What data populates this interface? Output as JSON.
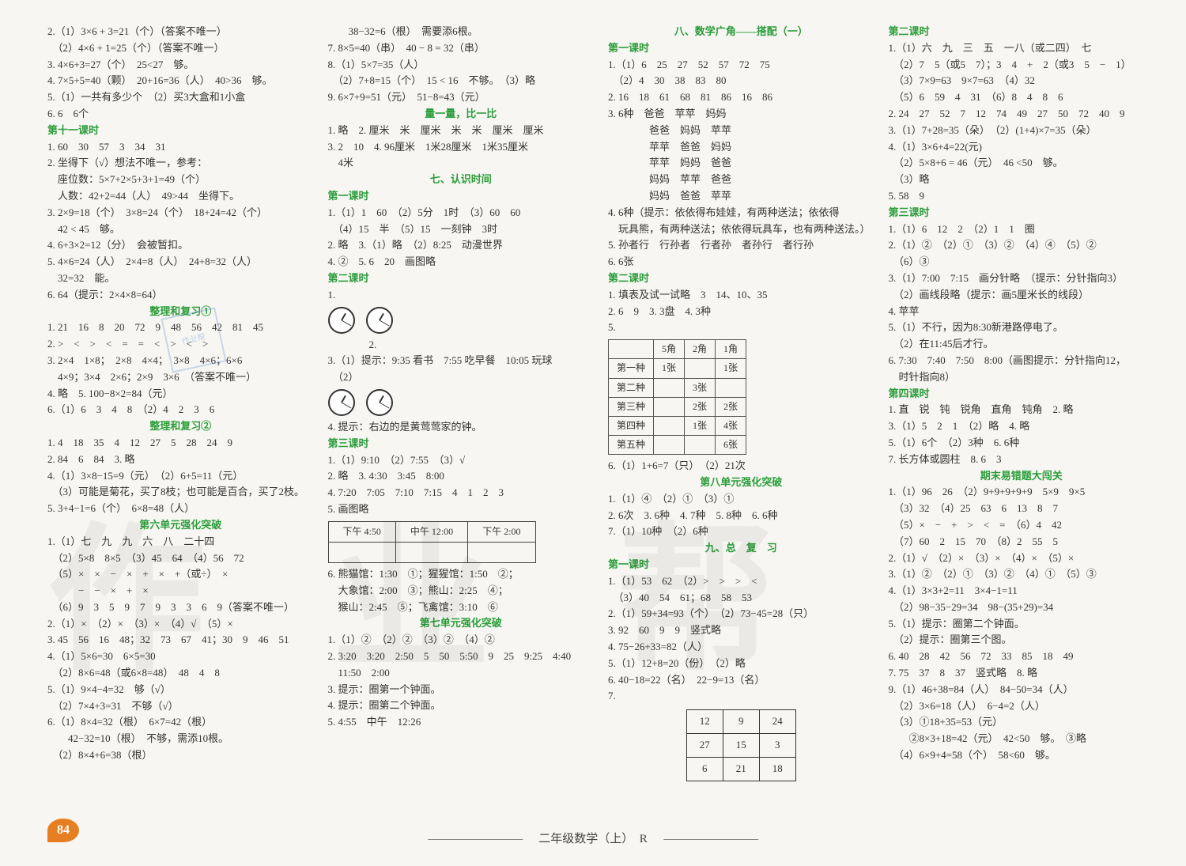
{
  "page_number": "84",
  "footer": "二年级数学（上）　R",
  "watermark": [
    "作",
    "业",
    "帮"
  ],
  "stamp_text": "作业帮",
  "col1": [
    {
      "t": "2.（1）3×6 + 3=21（个）（答案不唯一）"
    },
    {
      "t": "　（2）4×6 + 1=25（个）（答案不唯一）"
    },
    {
      "t": "3. 4×6+3=27（个）　25<27　够。"
    },
    {
      "t": "4. 7×5+5=40（颗）　20+16=36（人）　40>36　够。"
    },
    {
      "t": "5.（1）一共有多少个　（2）买3大盒和1小盒"
    },
    {
      "t": "6. 6　6个"
    },
    {
      "t": "第十一课时",
      "cls": "green"
    },
    {
      "t": "1. 60　30　57　3　34　31"
    },
    {
      "t": "2. 坐得下（√）想法不唯一，参考："
    },
    {
      "t": "　座位数：5×7+2×5+3+1=49（个）"
    },
    {
      "t": "　人数：42+2=44（人）　49>44　坐得下。"
    },
    {
      "t": "3. 2×9=18（个）　3×8=24（个）　18+24=42（个）"
    },
    {
      "t": "　42 < 45　够。"
    },
    {
      "t": "4. 6+3×2=12（分）　会被暂扣。"
    },
    {
      "t": "5. 4×6=24（人）　2×4=8（人）　24+8=32（人）"
    },
    {
      "t": "　32=32　能。"
    },
    {
      "t": "6. 64（提示：2×4×8=64）"
    },
    {
      "t": "整理和复习①",
      "cls": "green center"
    },
    {
      "t": "1. 21　16　8　20　72　9　48　56　42　81　45"
    },
    {
      "t": "2. >　<　>　<　=　=　<　>　<　>"
    },
    {
      "t": "3. 2×4　1×8；　2×8　4×4；　3×8　4×6；6×6"
    },
    {
      "t": "　4×9；3×4　2×6；2×9　3×6　（答案不唯一）"
    },
    {
      "t": "4. 略　5. 100−8×2=84（元）"
    },
    {
      "t": "6.（1）6　3　4　8　（2）4　2　3　6"
    },
    {
      "t": "整理和复习②",
      "cls": "green center"
    },
    {
      "t": "1. 4　18　35　4　12　27　5　28　24　9"
    },
    {
      "t": "2. 84　6　84　3. 略"
    },
    {
      "t": "4.（1）3×8−15=9（元）　（2）6+5=11（元）"
    },
    {
      "t": "　（3）可能是菊花，买了8枝；也可能是百合，买了2枝。"
    },
    {
      "t": "5. 3+4−1=6（个）　6×8=48（人）"
    },
    {
      "t": "第六单元强化突破",
      "cls": "green center"
    },
    {
      "t": "1.（1）七　九　九　六　八　二十四"
    },
    {
      "t": "　（2）5×8　8×5　（3）45　64　（4）56　72"
    },
    {
      "t": "　（5）×　×　−　×　+　×　+（或÷）　×"
    },
    {
      "t": "　　　−　−　×　+　×"
    },
    {
      "t": "　（6）9　3　5　9　7　9　3　3　6　9（答案不唯一）"
    },
    {
      "t": "2.（1）×　（2）×　（3）×　（4）√　（5）×"
    },
    {
      "t": "3. 45　56　16　48；32　73　67　41；30　9　46　51"
    },
    {
      "t": "4.（1）5×6=30　6×5=30"
    },
    {
      "t": "　（2）8×6=48（或6×8=48）　48　4　8"
    },
    {
      "t": "5.（1）9×4−4=32　够（√）"
    },
    {
      "t": "　（2）7×4+3=31　不够（√）"
    },
    {
      "t": "6.（1）8×4=32（根）　6×7=42（根）"
    },
    {
      "t": "　　42−32=10（根）　不够，需添10根。"
    },
    {
      "t": "　（2）8×4+6=38（根）"
    }
  ],
  "col2": [
    {
      "t": "　　38−32=6（根）　需要添6根。"
    },
    {
      "t": "7. 8×5=40（串）　40 − 8 = 32（串）"
    },
    {
      "t": "8.（1）5×7=35（人）"
    },
    {
      "t": "　（2）7+8=15（个）　15 < 16　不够。　（3）略"
    },
    {
      "t": "9. 6×7+9=51（元）　51−8=43（元）"
    },
    {
      "t": "量一量，比一比",
      "cls": "green center"
    },
    {
      "t": "1. 略　2. 厘米　米　厘米　米　米　厘米　厘米"
    },
    {
      "t": "3. 2　10　4. 96厘米　1米28厘米　1米35厘米"
    },
    {
      "t": "　4米"
    },
    {
      "t": "七、认识时间",
      "cls": "green center"
    },
    {
      "t": "第一课时",
      "cls": "green"
    },
    {
      "t": "1.（1）1　60　（2）5分　1时　（3）60　60"
    },
    {
      "t": "　（4）15　半　（5）15　一刻钟　3时"
    },
    {
      "t": "2. 略　3.（1）略　（2）8:25　动漫世界"
    },
    {
      "t": "4. ②　5. 6　20　画图略"
    },
    {
      "t": "第二课时",
      "cls": "green"
    },
    {
      "t": "1.",
      "clocks": 2
    },
    {
      "t": "　　　　2."
    },
    {
      "t": "3.（1）提示：9:35 看书　7:55 吃早餐　10:05 玩球"
    },
    {
      "t": "　（2）",
      "clocks": 2
    },
    {
      "t": "4. 提示：右边的是黄莺莺家的钟。"
    },
    {
      "t": "第三课时",
      "cls": "green"
    },
    {
      "t": "1.（1）9:10　（2）7:55　（3）√"
    },
    {
      "t": "2. 略　3. 4:30　3:45　8:00"
    },
    {
      "t": "4. 7:20　7:05　7:10　7:15　4　1　2　3"
    },
    {
      "t": "5. 画图略"
    },
    {
      "table_time": true
    },
    {
      "t": "6. 熊猫馆：1:30　①；猩猩馆：1:50　②；"
    },
    {
      "t": "　大象馆：2:00　③；熊山：2:25　④；"
    },
    {
      "t": "　猴山：2:45　⑤；飞禽馆：3:10　⑥"
    },
    {
      "t": "第七单元强化突破",
      "cls": "green center"
    },
    {
      "t": "1.（1）②　（2）②　（3）②　（4）②"
    },
    {
      "t": "2. 3:20　3:20　2:50　5　50　5:50　9　25　9:25　4:40"
    },
    {
      "t": "　11:50　2:00"
    },
    {
      "t": "3. 提示：圈第一个钟面。"
    },
    {
      "t": "4. 提示：圈第二个钟面。"
    },
    {
      "t": "5. 4:55　中午　12:26"
    }
  ],
  "col2_time_table": {
    "row1": [
      "下午 4:50",
      "中午 12:00",
      "下午 2:00"
    ],
    "row2": [
      "",
      "",
      ""
    ]
  },
  "col3": [
    {
      "t": "八、数学广角——搭配（一）",
      "cls": "green center"
    },
    {
      "t": "第一课时",
      "cls": "green"
    },
    {
      "t": "1.（1）6　25　27　52　57　72　75"
    },
    {
      "t": "　（2）4　30　38　83　80"
    },
    {
      "t": "2. 16　18　61　68　81　86　16　86"
    },
    {
      "t": "3. 6种　爸爸　苹苹　妈妈"
    },
    {
      "t": "　　　　爸爸　妈妈　苹苹"
    },
    {
      "t": "　　　　苹苹　爸爸　妈妈"
    },
    {
      "t": "　　　　苹苹　妈妈　爸爸"
    },
    {
      "t": "　　　　妈妈　苹苹　爸爸"
    },
    {
      "t": "　　　　妈妈　爸爸　苹苹"
    },
    {
      "t": "4. 6种（提示：依依得布娃娃，有两种送法；依依得"
    },
    {
      "t": "　玩具熊，有两种送法；依依得玩具车，也有两种送法。）"
    },
    {
      "t": "5. 孙者行　行孙者　行者孙　者孙行　者行孙"
    },
    {
      "t": "6. 6张"
    },
    {
      "t": "第二课时",
      "cls": "green"
    },
    {
      "t": "1. 填表及试一试略　3　14、10、35"
    },
    {
      "t": "2. 6　9　3. 3盘　4. 3种"
    },
    {
      "t": "5.",
      "table1": true
    },
    {
      "t": "6.（1）1+6=7（只）　（2）21次"
    },
    {
      "t": "第八单元强化突破",
      "cls": "green center"
    },
    {
      "t": "1.（1）④　（2）①　（3）①"
    },
    {
      "t": "2. 6次　3. 6种　4. 7种　5. 8种　6. 6种"
    },
    {
      "t": "7.（1）10种　（2）6种"
    },
    {
      "t": "九、总　复　习",
      "cls": "green center"
    },
    {
      "t": "第一课时",
      "cls": "green"
    },
    {
      "t": "1.（1）53　62　（2）>　>　>　<"
    },
    {
      "t": "　（3）40　54　61；68　58　53"
    },
    {
      "t": "2.（1）59+34=93（个）　（2）73−45=28（只）"
    },
    {
      "t": "3. 92　60　9　9　竖式略"
    },
    {
      "t": "4. 75−26+33=82（人）"
    },
    {
      "t": "5.（1）12+8=20（份）　（2）略"
    },
    {
      "t": "6. 40−18=22（名）　22−9=13（名）"
    },
    {
      "t": "7.",
      "table2": true
    }
  ],
  "col3_table1": {
    "head": [
      "",
      "5角",
      "2角",
      "1角"
    ],
    "rows": [
      [
        "第一种",
        "1张",
        "",
        "1张"
      ],
      [
        "第二种",
        "",
        "3张",
        ""
      ],
      [
        "第三种",
        "",
        "2张",
        "2张"
      ],
      [
        "第四种",
        "",
        "1张",
        "4张"
      ],
      [
        "第五种",
        "",
        "",
        "6张"
      ]
    ]
  },
  "col3_table2": {
    "rows": [
      [
        "12",
        "9",
        "24"
      ],
      [
        "27",
        "15",
        "3"
      ],
      [
        "6",
        "21",
        "18"
      ]
    ]
  },
  "col4": [
    {
      "t": "第二课时",
      "cls": "green"
    },
    {
      "t": "1.（1）六　九　三　五　一八（或二四）　七"
    },
    {
      "t": "　（2）7　5（或5　7）；3　4　+　2（或3　5　−　1）"
    },
    {
      "t": "　（3）7×9=63　9×7=63　（4）32"
    },
    {
      "t": "　（5）6　59　4　31　（6）8　4　8　6"
    },
    {
      "t": "2. 24　27　52　7　12　74　49　27　50　72　40　9"
    },
    {
      "t": "3.（1）7+28=35（朵）　（2）(1+4)×7=35（朵）"
    },
    {
      "t": "4.（1）3×6+4=22(元)"
    },
    {
      "t": "　（2）5×8+6 = 46（元）　46 <50　够。"
    },
    {
      "t": "　（3）略"
    },
    {
      "t": "5. 58　9"
    },
    {
      "t": "第三课时",
      "cls": "green"
    },
    {
      "t": "1.（1）6　12　2　（2）1　1　圈"
    },
    {
      "t": "2.（1）②　（2）①　（3）②　（4）④　（5）②"
    },
    {
      "t": "　（6）③"
    },
    {
      "t": "3.（1）7:00　7:15　画分针略　（提示：分针指向3）"
    },
    {
      "t": "　（2）画线段略（提示：画5厘米长的线段）"
    },
    {
      "t": "4. 苹苹"
    },
    {
      "t": "5.（1）不行，因为8:30新港路停电了。"
    },
    {
      "t": "　（2）在11:45后才行。"
    },
    {
      "t": "6. 7:30　7:40　7:50　8:00（画图提示：分针指向12，"
    },
    {
      "t": "　时针指向8）"
    },
    {
      "t": "第四课时",
      "cls": "green"
    },
    {
      "t": "1. 直　锐　钝　锐角　直角　钝角　2. 略"
    },
    {
      "t": "3.（1）5　2　1　（2）略　4. 略"
    },
    {
      "t": "5.（1）6个　（2）3种　6. 6种"
    },
    {
      "t": "7. 长方体或圆柱　8. 6　3"
    },
    {
      "t": "期末易错题大闯关",
      "cls": "green center"
    },
    {
      "t": "1.（1）96　26　（2）9+9+9+9+9　5×9　9×5"
    },
    {
      "t": "　（3）32　（4）25　63　6　13　8　7"
    },
    {
      "t": "　（5）×　−　+　>　<　=　（6）4　42"
    },
    {
      "t": "　（7）60　2　15　70　（8）2　55　5"
    },
    {
      "t": "2.（1）√　（2）×　（3）×　（4）×　（5）×"
    },
    {
      "t": "3.（1）②　（2）①　（3）②　（4）①　（5）③"
    },
    {
      "t": "4.（1）3×3+2=11　3×4−1=11"
    },
    {
      "t": "　（2）98−35−29=34　98−(35+29)=34"
    },
    {
      "t": "5.（1）提示：圈第二个钟面。"
    },
    {
      "t": "　（2）提示：圈第三个图。"
    },
    {
      "t": "6. 40　28　42　56　72　33　85　18　49"
    },
    {
      "t": "7. 75　37　8　37　竖式略　8. 略"
    },
    {
      "t": "9.（1）46+38=84（人）　84−50=34（人）"
    },
    {
      "t": "　（2）3×6=18（人）　6−4=2（人）"
    },
    {
      "t": "　（3）①18+35=53（元）"
    },
    {
      "t": "　　②8×3+18=42（元）　42<50　够。　③略"
    },
    {
      "t": "　（4）6×9+4=58（个）　58<60　够。"
    }
  ]
}
